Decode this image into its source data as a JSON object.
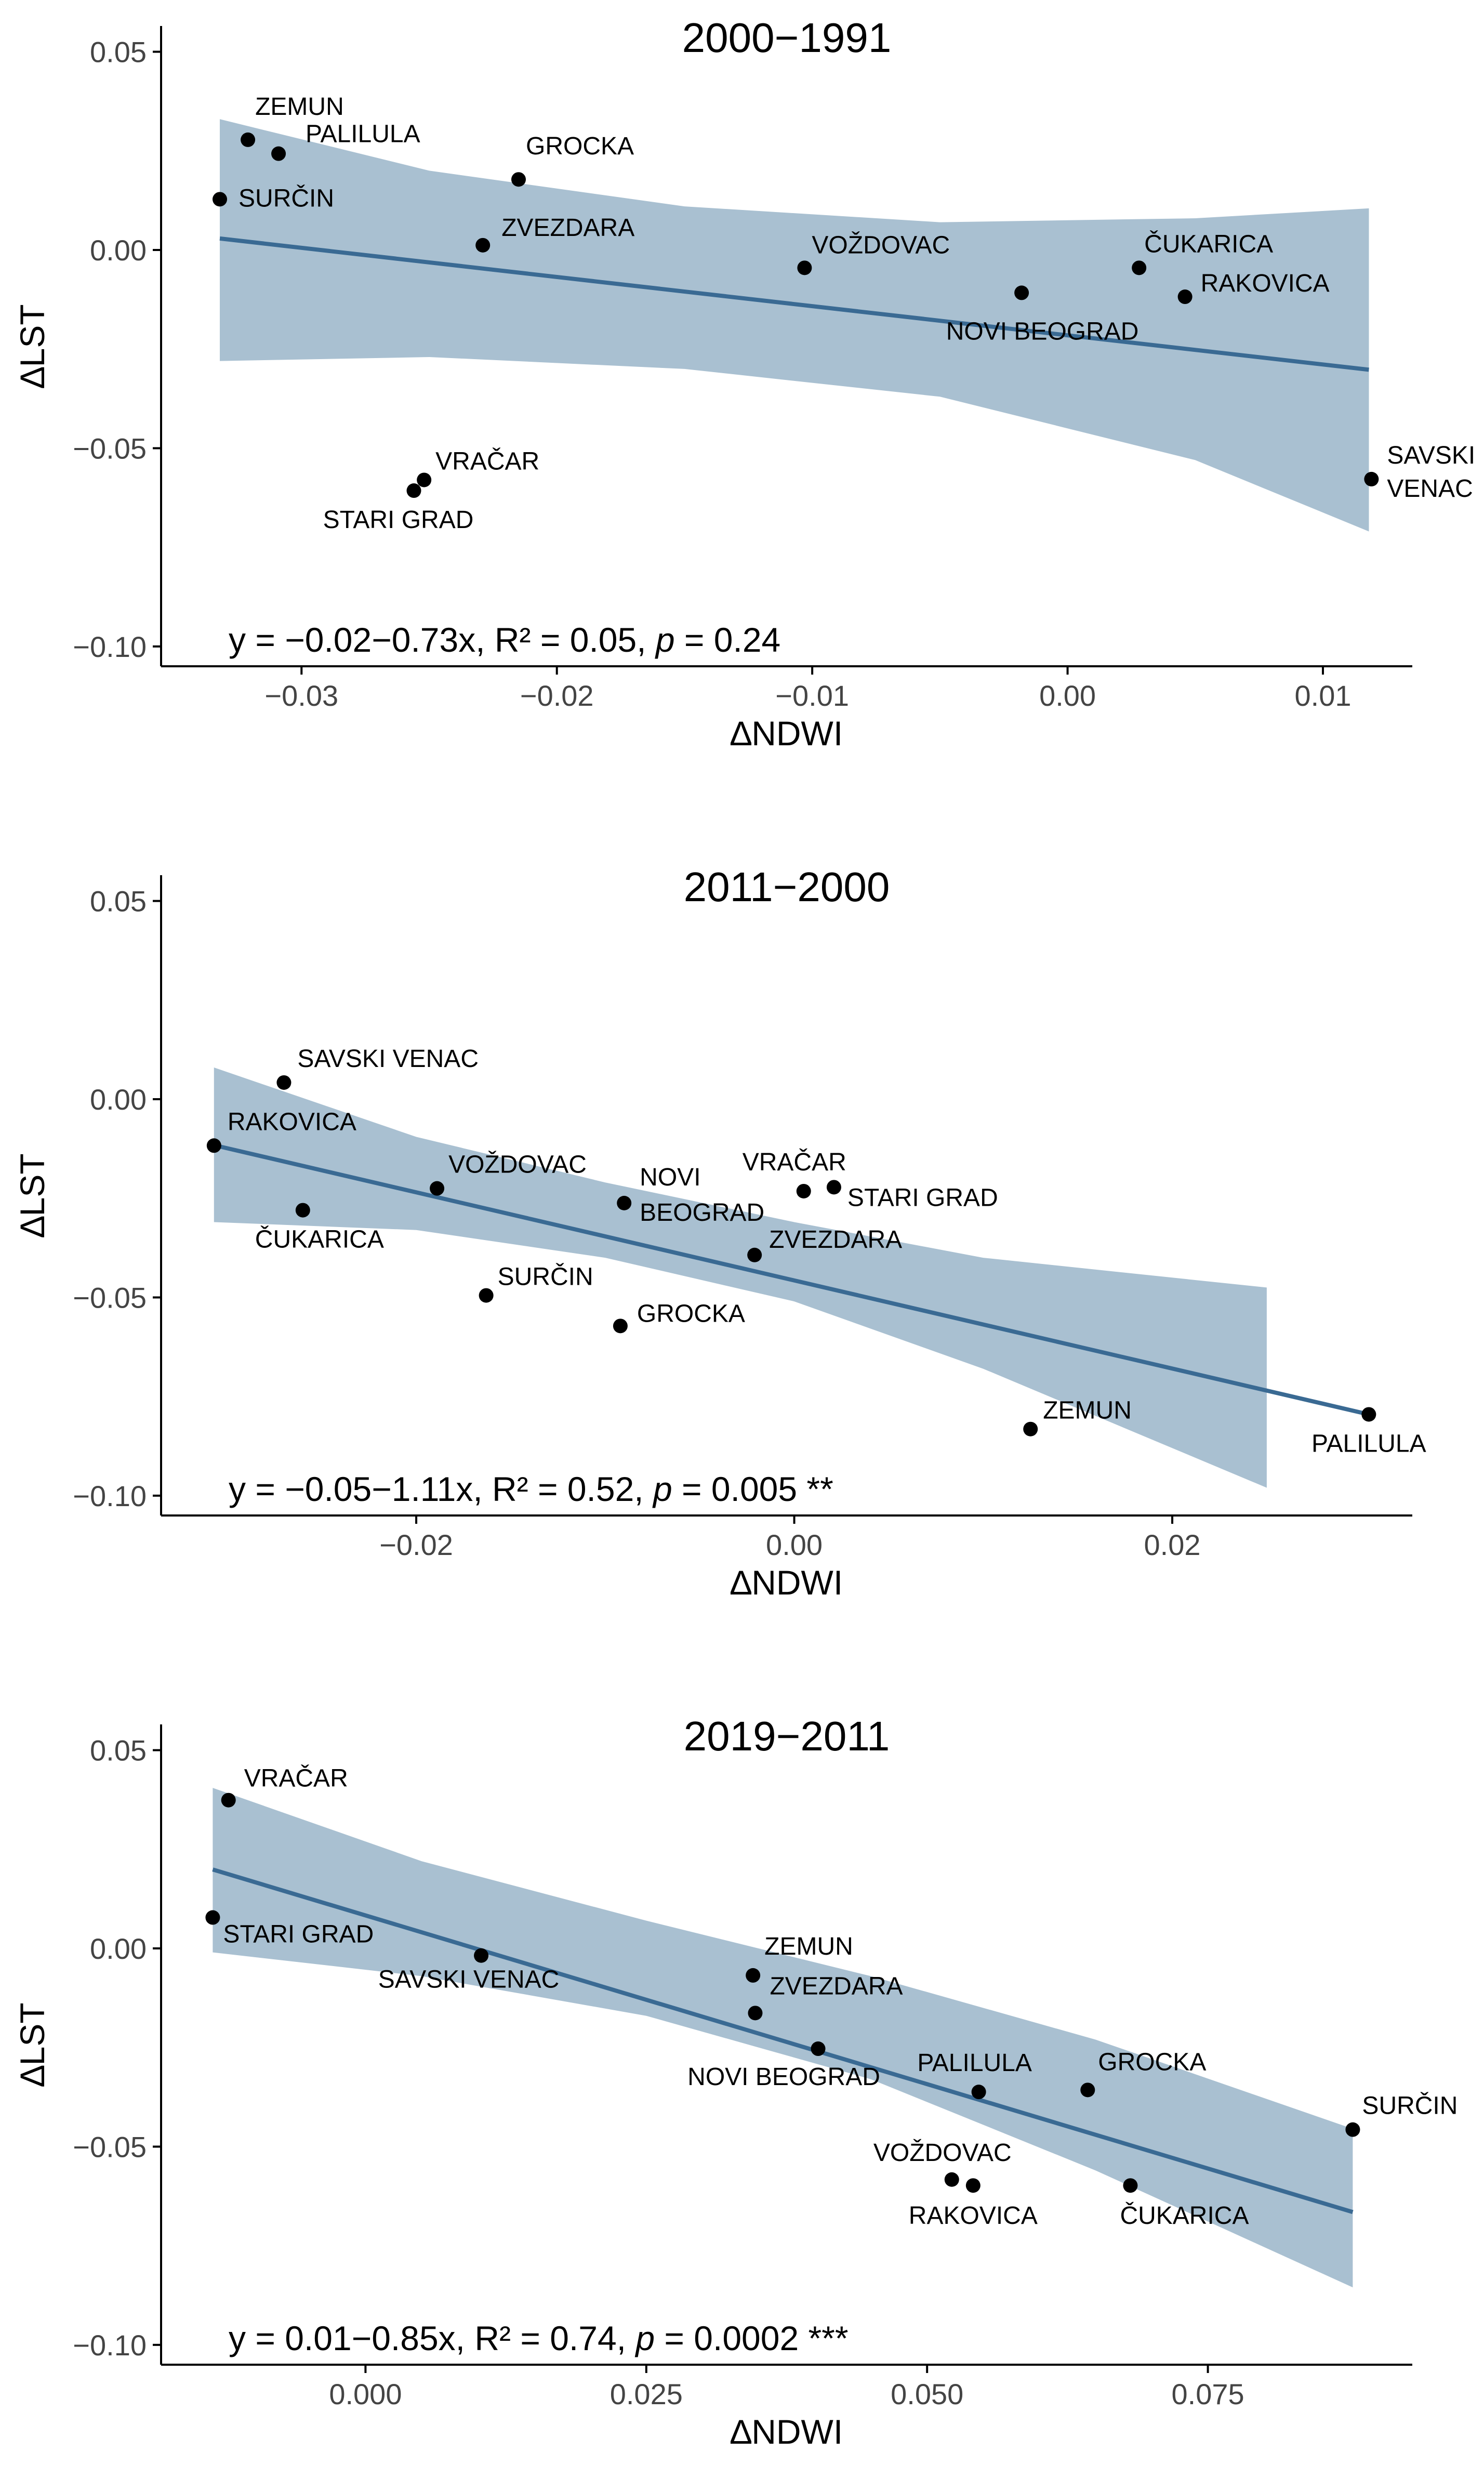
{
  "chart_data": [
    {
      "type": "scatter",
      "title": "2000−1991",
      "xlabel": "∆NDWI",
      "ylabel": "∆LST",
      "xlim": [
        -0.0355,
        0.0135
      ],
      "ylim": [
        -0.105,
        0.0565
      ],
      "xticks": [
        -0.03,
        -0.02,
        -0.01,
        0.0,
        0.01
      ],
      "xtick_labels": [
        "−0.03",
        "−0.02",
        "−0.01",
        "0.00",
        "0.01"
      ],
      "yticks": [
        0.05,
        0.0,
        -0.05,
        -0.1
      ],
      "ytick_labels": [
        "0.05",
        "0.00",
        "−0.05",
        "−0.10"
      ],
      "regression": {
        "x": [
          -0.0332,
          0.0118
        ],
        "y": [
          0.0029,
          -0.0302
        ]
      },
      "band": {
        "x": [
          -0.0332,
          -0.025,
          -0.015,
          -0.005,
          0.005,
          0.0118
        ],
        "upper": [
          0.033,
          0.02,
          0.011,
          0.007,
          0.008,
          0.0105
        ],
        "lower": [
          -0.028,
          -0.027,
          -0.03,
          -0.037,
          -0.053,
          -0.071
        ]
      },
      "points": [
        {
          "label": "ZEMUN",
          "x": -0.0321,
          "y": 0.0278,
          "anchor": "start",
          "dx": 14,
          "dy": -48
        },
        {
          "label": "PALILULA",
          "x": -0.0309,
          "y": 0.0243,
          "anchor": "start",
          "dx": 52,
          "dy": -22
        },
        {
          "label": "SURČIN",
          "x": -0.0332,
          "y": 0.0128,
          "anchor": "start",
          "dx": 36,
          "dy": 14
        },
        {
          "label": "GROCKA",
          "x": -0.0215,
          "y": 0.0178,
          "anchor": "start",
          "dx": 14,
          "dy": -48
        },
        {
          "label": "ZVEZDARA",
          "x": -0.0229,
          "y": 0.0012,
          "anchor": "start",
          "dx": 36,
          "dy": -18
        },
        {
          "label": "VOŽDOVAC",
          "x": -0.0103,
          "y": -0.0045,
          "anchor": "start",
          "dx": 14,
          "dy": -28
        },
        {
          "label": "ČUKARICA",
          "x": 0.0028,
          "y": -0.0045,
          "anchor": "start",
          "dx": 10,
          "dy": -30
        },
        {
          "label": "RAKOVICA",
          "x": 0.0046,
          "y": -0.0118,
          "anchor": "start",
          "dx": 30,
          "dy": -10
        },
        {
          "label": "NOVI BEOGRAD",
          "x": -0.0018,
          "y": -0.0108,
          "anchor": "middle",
          "dx": 40,
          "dy": 90
        },
        {
          "label": "SAVSKI",
          "x": 0.0119,
          "y": -0.0578,
          "anchor": "start",
          "dx": 30,
          "dy": -30
        },
        {
          "label": "VENAC",
          "x": 0.0119,
          "y": -0.0578,
          "anchor": "start",
          "dx": 30,
          "dy": 34,
          "no_marker": true
        },
        {
          "label": "VRAČAR",
          "x": -0.0252,
          "y": -0.058,
          "anchor": "start",
          "dx": 22,
          "dy": -20
        },
        {
          "label": "STARI GRAD",
          "x": -0.0256,
          "y": -0.0607,
          "anchor": "middle",
          "dx": -30,
          "dy": 72
        }
      ],
      "annotation": {
        "prefix": "y = −0.02−0.73x, R² = 0.05, ",
        "p_label": "p",
        "suffix": " = 0.24"
      }
    },
    {
      "type": "scatter",
      "title": "2011−2000",
      "xlabel": "∆NDWI",
      "ylabel": "∆LST",
      "xlim": [
        -0.0335,
        0.0327
      ],
      "ylim": [
        -0.105,
        0.0565
      ],
      "xticks": [
        -0.02,
        0.0,
        0.02
      ],
      "xtick_labels": [
        "−0.02",
        "0.00",
        "0.02"
      ],
      "yticks": [
        0.05,
        0.0,
        -0.05,
        -0.1
      ],
      "ytick_labels": [
        "0.05",
        "0.00",
        "−0.05",
        "−0.10"
      ],
      "regression": {
        "x": [
          -0.0307,
          0.0304
        ],
        "y": [
          -0.0116,
          -0.0795
        ]
      },
      "band": {
        "x": [
          -0.0307,
          -0.02,
          -0.01,
          0.0,
          0.01,
          0.025
        ],
        "upper": [
          0.008,
          -0.0095,
          -0.021,
          -0.031,
          -0.04,
          -0.0475
        ],
        "lower": [
          -0.031,
          -0.033,
          -0.04,
          -0.051,
          -0.068,
          -0.098
        ]
      },
      "points": [
        {
          "label": "SAVSKI VENAC",
          "x": -0.027,
          "y": 0.0042,
          "anchor": "start",
          "dx": 26,
          "dy": -30
        },
        {
          "label": "RAKOVICA",
          "x": -0.0307,
          "y": -0.0117,
          "anchor": "start",
          "dx": 26,
          "dy": -30
        },
        {
          "label": "ČUKARICA",
          "x": -0.026,
          "y": -0.028,
          "anchor": "start",
          "dx": -92,
          "dy": 72
        },
        {
          "label": "VOŽDOVAC",
          "x": -0.0189,
          "y": -0.0225,
          "anchor": "start",
          "dx": 22,
          "dy": -30
        },
        {
          "label": "NOVI",
          "x": -0.009,
          "y": -0.0262,
          "anchor": "start",
          "dx": 30,
          "dy": -34
        },
        {
          "label": "BEOGRAD",
          "x": -0.009,
          "y": -0.0262,
          "anchor": "start",
          "dx": 30,
          "dy": 34,
          "no_marker": true
        },
        {
          "label": "VRAČAR",
          "x": 0.0005,
          "y": -0.0232,
          "anchor": "middle",
          "dx": -18,
          "dy": -40
        },
        {
          "label": "STARI GRAD",
          "x": 0.0021,
          "y": -0.0222,
          "anchor": "start",
          "dx": 26,
          "dy": 36
        },
        {
          "label": "ZVEZDARA",
          "x": -0.0021,
          "y": -0.0393,
          "anchor": "start",
          "dx": 28,
          "dy": -14
        },
        {
          "label": "SURČIN",
          "x": -0.0163,
          "y": -0.0495,
          "anchor": "start",
          "dx": 22,
          "dy": -20
        },
        {
          "label": "GROCKA",
          "x": -0.0092,
          "y": -0.0572,
          "anchor": "start",
          "dx": 32,
          "dy": -8
        },
        {
          "label": "ZEMUN",
          "x": 0.0125,
          "y": -0.0832,
          "anchor": "start",
          "dx": 24,
          "dy": -20
        },
        {
          "label": "PALILULA",
          "x": 0.0304,
          "y": -0.0795,
          "anchor": "middle",
          "dx": 0,
          "dy": 72
        }
      ],
      "annotation": {
        "prefix": "y = −0.05−1.11x, R² = 0.52, ",
        "p_label": "p",
        "suffix": " = 0.005 **"
      }
    },
    {
      "type": "scatter",
      "title": "2019−2011",
      "xlabel": "∆NDWI",
      "ylabel": "∆LST",
      "xlim": [
        -0.0182,
        0.0932
      ],
      "ylim": [
        -0.105,
        0.0565
      ],
      "xticks": [
        0.0,
        0.025,
        0.05,
        0.075
      ],
      "xtick_labels": [
        "0.000",
        "0.025",
        "0.050",
        "0.075"
      ],
      "yticks": [
        0.05,
        0.0,
        -0.05,
        -0.1
      ],
      "ytick_labels": [
        "0.05",
        "0.00",
        "−0.05",
        "−0.10"
      ],
      "regression": {
        "x": [
          -0.0136,
          0.0879
        ],
        "y": [
          0.0199,
          -0.0665
        ]
      },
      "band": {
        "x": [
          -0.0136,
          0.005,
          0.025,
          0.045,
          0.065,
          0.0879
        ],
        "upper": [
          0.0405,
          0.022,
          0.007,
          -0.007,
          -0.023,
          -0.0455
        ],
        "lower": [
          -0.001,
          -0.007,
          -0.017,
          -0.033,
          -0.056,
          -0.0855
        ]
      },
      "points": [
        {
          "label": "VRAČAR",
          "x": -0.0122,
          "y": 0.0374,
          "anchor": "start",
          "dx": 30,
          "dy": -26
        },
        {
          "label": "STARI GRAD",
          "x": -0.0136,
          "y": 0.0078,
          "anchor": "start",
          "dx": 20,
          "dy": 48
        },
        {
          "label": "SAVSKI VENAC",
          "x": 0.0103,
          "y": -0.0018,
          "anchor": "middle",
          "dx": -24,
          "dy": 62
        },
        {
          "label": "ZEMUN",
          "x": 0.0345,
          "y": -0.0068,
          "anchor": "start",
          "dx": 22,
          "dy": -40
        },
        {
          "label": "ZVEZDARA",
          "x": 0.0347,
          "y": -0.0163,
          "anchor": "start",
          "dx": 28,
          "dy": -36
        },
        {
          "label": "NOVI BEOGRAD",
          "x": 0.0403,
          "y": -0.0253,
          "anchor": "middle",
          "dx": -66,
          "dy": 70
        },
        {
          "label": "PALILULA",
          "x": 0.0546,
          "y": -0.0362,
          "anchor": "middle",
          "dx": -8,
          "dy": -40
        },
        {
          "label": "GROCKA",
          "x": 0.0643,
          "y": -0.0357,
          "anchor": "start",
          "dx": 20,
          "dy": -38
        },
        {
          "label": "SURČIN",
          "x": 0.0879,
          "y": -0.0457,
          "anchor": "start",
          "dx": 18,
          "dy": -30
        },
        {
          "label": "VOŽDOVAC",
          "x": 0.0522,
          "y": -0.0583,
          "anchor": "middle",
          "dx": -18,
          "dy": -36
        },
        {
          "label": "RAKOVICA",
          "x": 0.0541,
          "y": -0.0598,
          "anchor": "middle",
          "dx": 0,
          "dy": 74
        },
        {
          "label": "ČUKARICA",
          "x": 0.0681,
          "y": -0.0598,
          "anchor": "start",
          "dx": -20,
          "dy": 74
        }
      ],
      "annotation": {
        "prefix": "y = 0.01−0.85x, R² = 0.74, ",
        "p_label": "p",
        "suffix": " = 0.0002 ***"
      }
    }
  ]
}
